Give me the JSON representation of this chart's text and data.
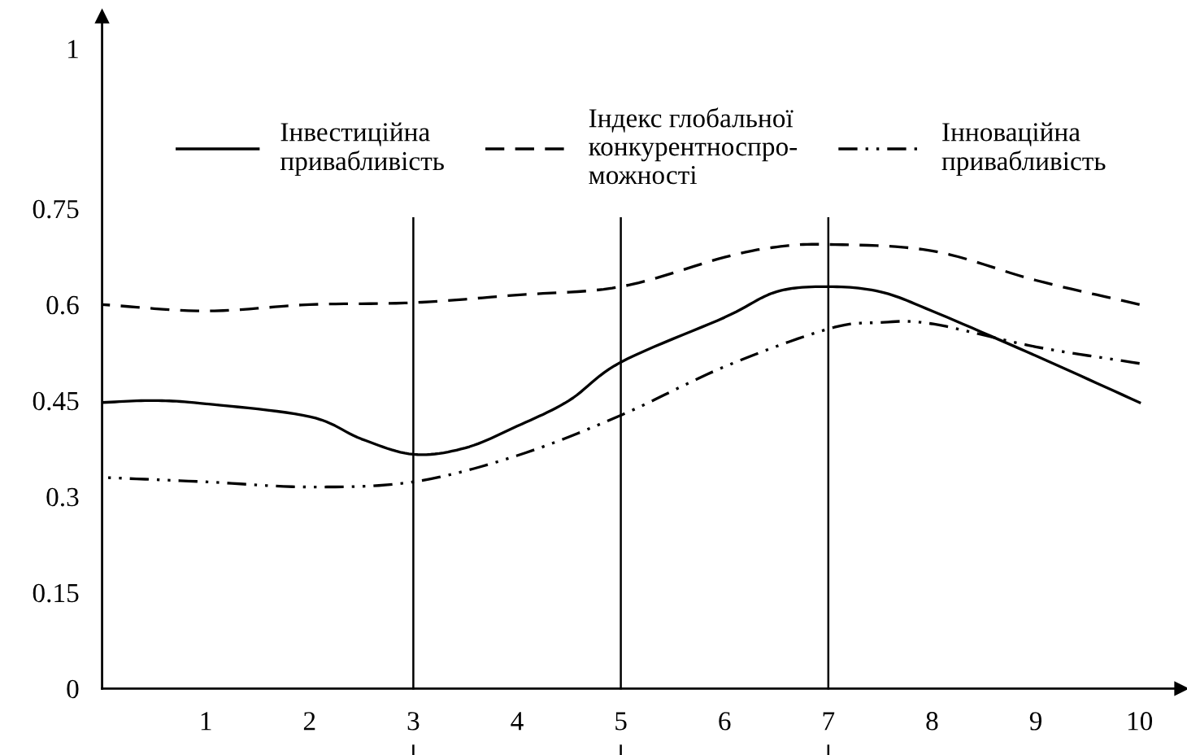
{
  "chart_data": {
    "type": "line",
    "x": [
      0,
      0.5,
      1,
      2,
      2.5,
      3,
      3.5,
      4,
      4.5,
      5,
      6,
      6.5,
      7,
      7.5,
      8,
      9,
      10
    ],
    "series": [
      {
        "name": "Інвестиційна\nпривабливість",
        "color": "#000000",
        "line_style": "solid",
        "values": [
          0.447,
          0.45,
          0.445,
          0.425,
          0.39,
          0.366,
          0.376,
          0.41,
          0.45,
          0.51,
          0.58,
          0.62,
          0.628,
          0.62,
          0.59,
          0.52,
          0.447
        ]
      },
      {
        "name": "Індекс глобальної\nконкурентноспро-\nможності",
        "color": "#000000",
        "line_style": "dashed",
        "x": [
          0,
          1,
          2,
          3,
          4,
          5,
          6,
          6.5,
          7,
          8,
          9,
          10
        ],
        "values": [
          0.6,
          0.59,
          0.6,
          0.603,
          0.615,
          0.628,
          0.674,
          0.69,
          0.694,
          0.684,
          0.638,
          0.6
        ]
      },
      {
        "name": "Інноваційна\nпривабливість",
        "color": "#000000",
        "line_style": "dashdotdot",
        "x": [
          0,
          1,
          2,
          3,
          4,
          5,
          6,
          7,
          7.5,
          8,
          9,
          10
        ],
        "values": [
          0.33,
          0.323,
          0.315,
          0.323,
          0.364,
          0.427,
          0.503,
          0.562,
          0.572,
          0.57,
          0.534,
          0.508
        ]
      }
    ],
    "xlim": [
      0,
      10.4
    ],
    "xticks": [
      1,
      2,
      3,
      4,
      5,
      6,
      7,
      8,
      9,
      10
    ],
    "ylim": [
      0,
      1.05
    ],
    "yticks": [
      0,
      0.15,
      0.3,
      0.45,
      0.6,
      0.75,
      1
    ],
    "ref_lines": [
      {
        "axis": "x",
        "value": 3,
        "color": "#000000"
      },
      {
        "axis": "x",
        "value": 5,
        "color": "#000000"
      },
      {
        "axis": "x",
        "value": 7,
        "color": "#000000"
      }
    ],
    "grid": false,
    "legend": "top",
    "marker": "none"
  }
}
